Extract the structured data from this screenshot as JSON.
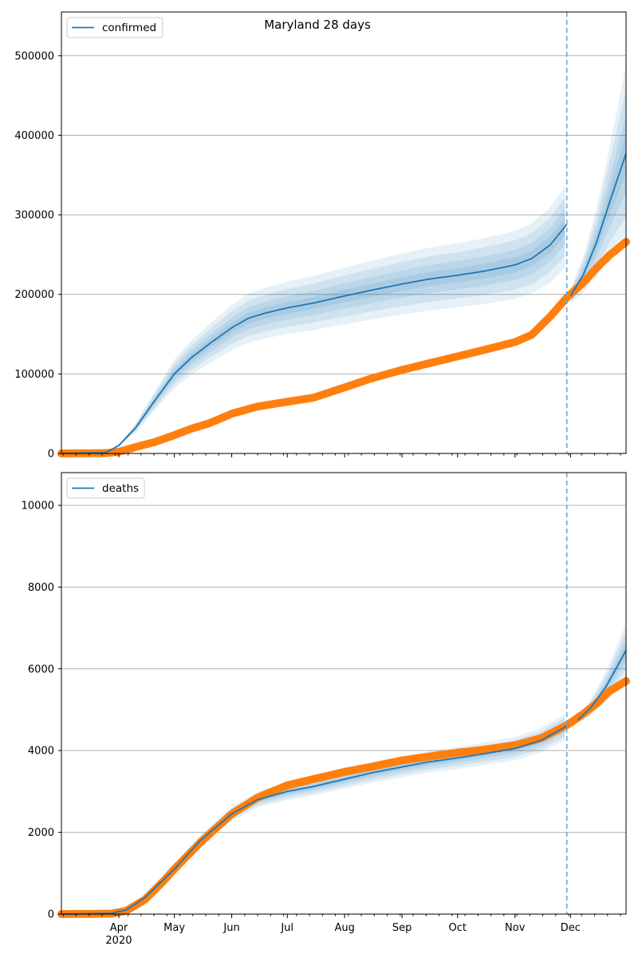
{
  "figure": {
    "title": "Maryland 28 days",
    "x_date_range": [
      "2020-03-01",
      "2020-12-31"
    ],
    "month_labels": [
      "Apr",
      "May",
      "Jun",
      "Jul",
      "Aug",
      "Sep",
      "Oct",
      "Nov",
      "Dec"
    ],
    "year_label": "2020",
    "forecast_start_date": "2020-11-29",
    "colors": {
      "model": "#1f77b4",
      "observed": "#ff7f0e",
      "band": "#1f77b4",
      "forecast_line": "#6aa8d8",
      "grid": "#b0b0b0"
    }
  },
  "chart_data": [
    {
      "type": "line",
      "legend": "confirmed",
      "legend_position": "top-left",
      "grid": "horizontal",
      "ylim": [
        0,
        555000
      ],
      "yticks": [
        0,
        100000,
        200000,
        300000,
        400000,
        500000
      ],
      "ytick_labels": [
        "0",
        "100000",
        "200000",
        "300000",
        "400000",
        "500000"
      ],
      "model_median": [
        [
          "2020-03-01",
          0
        ],
        [
          "2020-03-25",
          1000
        ],
        [
          "2020-04-01",
          10000
        ],
        [
          "2020-04-10",
          32000
        ],
        [
          "2020-04-20",
          65000
        ],
        [
          "2020-05-01",
          100000
        ],
        [
          "2020-05-10",
          120000
        ],
        [
          "2020-05-20",
          138000
        ],
        [
          "2020-06-01",
          158000
        ],
        [
          "2020-06-10",
          170000
        ],
        [
          "2020-06-20",
          177000
        ],
        [
          "2020-07-01",
          183000
        ],
        [
          "2020-07-15",
          189000
        ],
        [
          "2020-08-01",
          198000
        ],
        [
          "2020-08-15",
          205000
        ],
        [
          "2020-09-01",
          213000
        ],
        [
          "2020-09-15",
          219000
        ],
        [
          "2020-10-01",
          224000
        ],
        [
          "2020-10-15",
          229000
        ],
        [
          "2020-11-01",
          237000
        ],
        [
          "2020-11-10",
          245000
        ],
        [
          "2020-11-20",
          262000
        ],
        [
          "2020-11-29",
          288000
        ],
        [
          "2020-12-01",
          198000
        ],
        [
          "2020-12-08",
          225000
        ],
        [
          "2020-12-15",
          265000
        ],
        [
          "2020-12-22",
          315000
        ],
        [
          "2020-12-31",
          377000
        ]
      ],
      "band_half_widths_pct": [
        4,
        8,
        13,
        18
      ],
      "observed": [
        [
          "2020-03-01",
          0
        ],
        [
          "2020-03-25",
          500
        ],
        [
          "2020-04-01",
          2000
        ],
        [
          "2020-04-10",
          8000
        ],
        [
          "2020-04-20",
          14000
        ],
        [
          "2020-05-01",
          23000
        ],
        [
          "2020-05-10",
          31000
        ],
        [
          "2020-05-20",
          38000
        ],
        [
          "2020-06-01",
          50000
        ],
        [
          "2020-06-15",
          59000
        ],
        [
          "2020-07-01",
          65000
        ],
        [
          "2020-07-15",
          70000
        ],
        [
          "2020-08-01",
          83000
        ],
        [
          "2020-08-15",
          94000
        ],
        [
          "2020-09-01",
          105000
        ],
        [
          "2020-09-15",
          113000
        ],
        [
          "2020-10-01",
          122000
        ],
        [
          "2020-10-15",
          130000
        ],
        [
          "2020-11-01",
          140000
        ],
        [
          "2020-11-10",
          149000
        ],
        [
          "2020-11-20",
          172000
        ],
        [
          "2020-11-29",
          196000
        ],
        [
          "2020-12-08",
          215000
        ],
        [
          "2020-12-15",
          233000
        ],
        [
          "2020-12-22",
          249000
        ],
        [
          "2020-12-31",
          266000
        ]
      ]
    },
    {
      "type": "line",
      "legend": "deaths",
      "legend_position": "top-left",
      "grid": "horizontal",
      "ylim": [
        0,
        10800
      ],
      "yticks": [
        0,
        2000,
        4000,
        6000,
        8000,
        10000
      ],
      "ytick_labels": [
        "0",
        "2000",
        "4000",
        "6000",
        "8000",
        "10000"
      ],
      "model_median": [
        [
          "2020-03-01",
          0
        ],
        [
          "2020-03-28",
          20
        ],
        [
          "2020-04-05",
          100
        ],
        [
          "2020-04-15",
          400
        ],
        [
          "2020-05-01",
          1100
        ],
        [
          "2020-05-15",
          1800
        ],
        [
          "2020-06-01",
          2450
        ],
        [
          "2020-06-15",
          2800
        ],
        [
          "2020-07-01",
          3000
        ],
        [
          "2020-07-15",
          3120
        ],
        [
          "2020-08-01",
          3300
        ],
        [
          "2020-08-15",
          3450
        ],
        [
          "2020-09-01",
          3600
        ],
        [
          "2020-09-15",
          3720
        ],
        [
          "2020-10-01",
          3820
        ],
        [
          "2020-10-15",
          3920
        ],
        [
          "2020-11-01",
          4050
        ],
        [
          "2020-11-15",
          4250
        ],
        [
          "2020-11-29",
          4600
        ],
        [
          "2020-12-05",
          4750
        ],
        [
          "2020-12-12",
          5050
        ],
        [
          "2020-12-20",
          5550
        ],
        [
          "2020-12-31",
          6450
        ]
      ],
      "band_half_widths_pct": [
        1.5,
        3,
        5,
        7
      ],
      "observed": [
        [
          "2020-03-01",
          0
        ],
        [
          "2020-03-28",
          10
        ],
        [
          "2020-04-05",
          80
        ],
        [
          "2020-04-15",
          350
        ],
        [
          "2020-04-25",
          800
        ],
        [
          "2020-05-01",
          1100
        ],
        [
          "2020-05-15",
          1750
        ],
        [
          "2020-06-01",
          2450
        ],
        [
          "2020-06-15",
          2850
        ],
        [
          "2020-07-01",
          3150
        ],
        [
          "2020-07-15",
          3300
        ],
        [
          "2020-08-01",
          3480
        ],
        [
          "2020-08-15",
          3600
        ],
        [
          "2020-09-01",
          3760
        ],
        [
          "2020-09-15",
          3850
        ],
        [
          "2020-10-01",
          3950
        ],
        [
          "2020-10-15",
          4020
        ],
        [
          "2020-11-01",
          4130
        ],
        [
          "2020-11-15",
          4300
        ],
        [
          "2020-11-29",
          4620
        ],
        [
          "2020-12-08",
          4900
        ],
        [
          "2020-12-15",
          5150
        ],
        [
          "2020-12-22",
          5450
        ],
        [
          "2020-12-31",
          5700
        ]
      ]
    }
  ]
}
